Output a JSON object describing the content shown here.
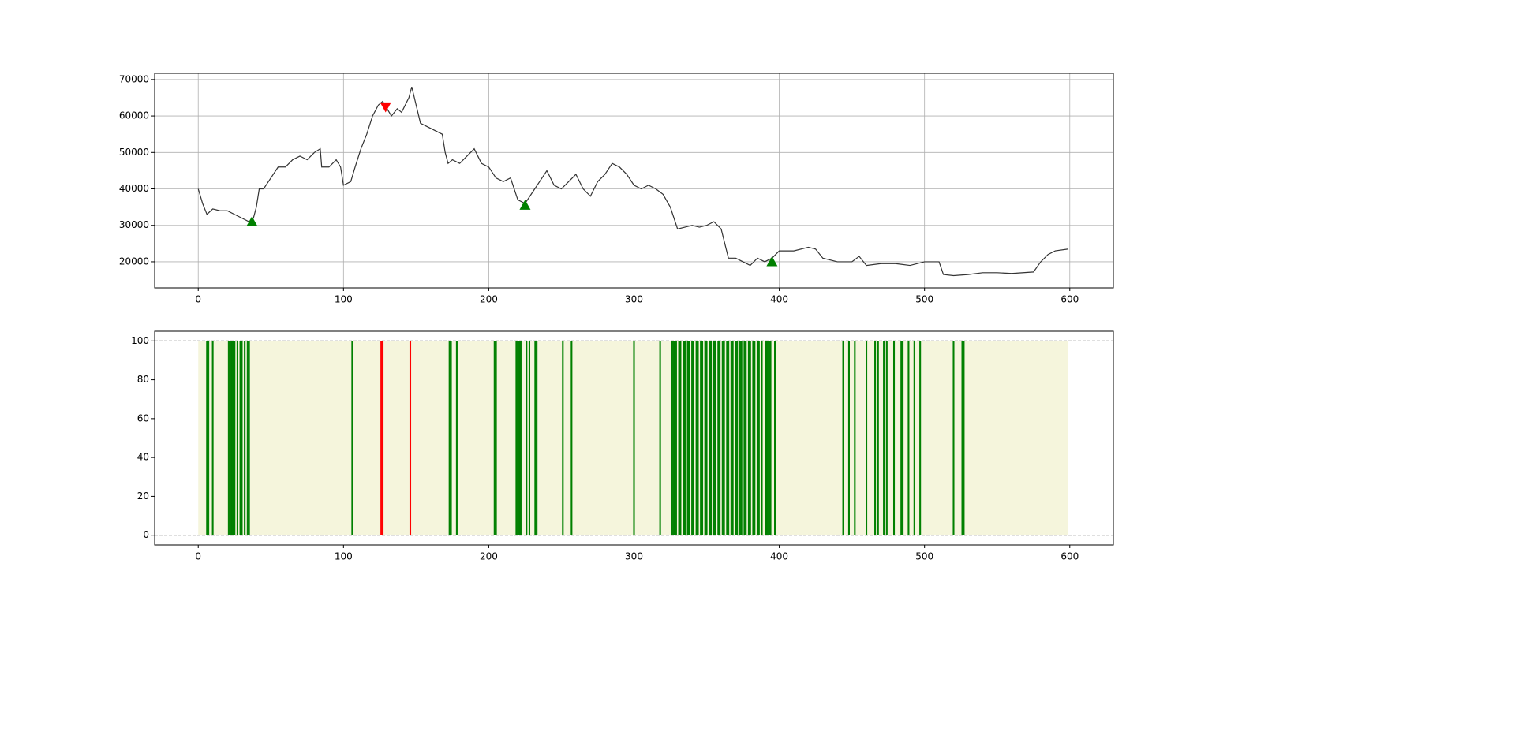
{
  "chart_data": [
    {
      "type": "line",
      "series": [
        {
          "color": "#333333",
          "x": [
            0,
            3,
            6,
            10,
            15,
            20,
            25,
            30,
            35,
            38,
            40,
            42,
            45,
            50,
            55,
            60,
            65,
            70,
            75,
            80,
            84,
            85,
            90,
            95,
            98,
            100,
            105,
            108,
            112,
            116,
            120,
            124,
            127,
            130,
            133,
            137,
            140,
            145,
            147,
            150,
            153,
            158,
            163,
            168,
            170,
            172,
            175,
            180,
            185,
            190,
            195,
            200,
            205,
            210,
            215,
            220,
            225,
            230,
            235,
            240,
            245,
            250,
            255,
            260,
            265,
            270,
            275,
            280,
            285,
            290,
            295,
            300,
            305,
            310,
            315,
            320,
            325,
            330,
            335,
            340,
            345,
            350,
            355,
            360,
            365,
            370,
            375,
            380,
            385,
            390,
            395,
            400,
            410,
            420,
            425,
            430,
            440,
            450,
            455,
            460,
            470,
            480,
            490,
            500,
            510,
            513,
            520,
            530,
            540,
            550,
            560,
            575,
            580,
            585,
            590,
            599
          ],
          "values": [
            40000,
            36000,
            33000,
            34500,
            34000,
            34000,
            33000,
            32000,
            31000,
            32000,
            35000,
            40000,
            40000,
            43000,
            46000,
            46000,
            48000,
            49000,
            48000,
            50000,
            51000,
            46000,
            46000,
            48000,
            46000,
            41000,
            42000,
            46000,
            51000,
            55000,
            60000,
            63000,
            64000,
            62000,
            60000,
            62000,
            61000,
            65000,
            68000,
            63000,
            58000,
            57000,
            56000,
            55000,
            50000,
            47000,
            48000,
            47000,
            49000,
            51000,
            47000,
            46000,
            43000,
            42000,
            43000,
            37000,
            36000,
            39000,
            42000,
            45000,
            41000,
            40000,
            42000,
            44000,
            40000,
            38000,
            42000,
            44000,
            47000,
            46000,
            44000,
            41000,
            40000,
            41000,
            40000,
            38500,
            35000,
            29000,
            29500,
            30000,
            29500,
            30000,
            31000,
            29000,
            21000,
            21000,
            20000,
            19000,
            21000,
            20000,
            21000,
            23000,
            23000,
            24000,
            23500,
            21000,
            20000,
            20000,
            21500,
            19000,
            19500,
            19500,
            19000,
            20000,
            20000,
            16500,
            16200,
            16500,
            17000,
            17000,
            16800,
            17200,
            20000,
            22000,
            23000,
            23500
          ]
        }
      ],
      "markers": [
        {
          "x": 37,
          "value": 31000,
          "color": "green",
          "shape": "up"
        },
        {
          "x": 129,
          "value": 62500,
          "color": "red",
          "shape": "down"
        },
        {
          "x": 225,
          "value": 35500,
          "color": "green",
          "shape": "up"
        },
        {
          "x": 395,
          "value": 20000,
          "color": "green",
          "shape": "up"
        }
      ],
      "xlim": [
        -30,
        630
      ],
      "ylim": [
        12850,
        71700
      ],
      "xticks": [
        0,
        100,
        200,
        300,
        400,
        500,
        600
      ],
      "yticks": [
        20000,
        30000,
        40000,
        50000,
        60000,
        70000
      ],
      "grid": true
    },
    {
      "type": "bar",
      "series": [
        {
          "color": "#f5f5dc",
          "style": "area",
          "x": [
            0,
            599
          ],
          "values": [
            100,
            100
          ]
        },
        {
          "color": "green",
          "x": [
            6,
            7,
            10,
            21,
            22,
            23,
            24,
            25,
            27,
            29,
            30,
            32,
            34,
            35,
            106,
            173,
            174,
            178,
            204,
            205,
            219,
            220,
            221,
            222,
            226,
            228,
            232,
            233,
            251,
            257,
            300,
            318,
            326,
            327,
            328,
            329,
            331,
            332,
            334,
            335,
            337,
            338,
            340,
            341,
            343,
            344,
            346,
            347,
            349,
            350,
            352,
            353,
            355,
            356,
            358,
            359,
            361,
            362,
            364,
            365,
            367,
            368,
            370,
            371,
            373,
            374,
            376,
            377,
            379,
            380,
            382,
            383,
            385,
            386,
            388,
            391,
            392,
            393,
            394,
            397,
            444,
            448,
            452,
            460,
            466,
            468,
            472,
            474,
            479,
            484,
            485,
            489,
            493,
            497,
            520,
            526,
            527
          ],
          "values": [
            100,
            100,
            100,
            100,
            100,
            100,
            100,
            100,
            100,
            100,
            100,
            100,
            100,
            100,
            100,
            100,
            100,
            100,
            100,
            100,
            100,
            100,
            100,
            100,
            100,
            100,
            100,
            100,
            100,
            100,
            100,
            100,
            100,
            100,
            100,
            100,
            100,
            100,
            100,
            100,
            100,
            100,
            100,
            100,
            100,
            100,
            100,
            100,
            100,
            100,
            100,
            100,
            100,
            100,
            100,
            100,
            100,
            100,
            100,
            100,
            100,
            100,
            100,
            100,
            100,
            100,
            100,
            100,
            100,
            100,
            100,
            100,
            100,
            100,
            100,
            100,
            100,
            100,
            100,
            100,
            100,
            100,
            100,
            100,
            100,
            100,
            100,
            100,
            100,
            100,
            100,
            100,
            100,
            100,
            100,
            100,
            100
          ]
        },
        {
          "color": "red",
          "x": [
            126,
            127,
            146
          ],
          "values": [
            100,
            100,
            100
          ]
        }
      ],
      "hlines": [
        0,
        100
      ],
      "xlim": [
        -30,
        630
      ],
      "ylim": [
        -5,
        105
      ],
      "xticks": [
        0,
        100,
        200,
        300,
        400,
        500,
        600
      ],
      "yticks": [
        0,
        20,
        40,
        60,
        80,
        100
      ],
      "grid": false
    }
  ]
}
